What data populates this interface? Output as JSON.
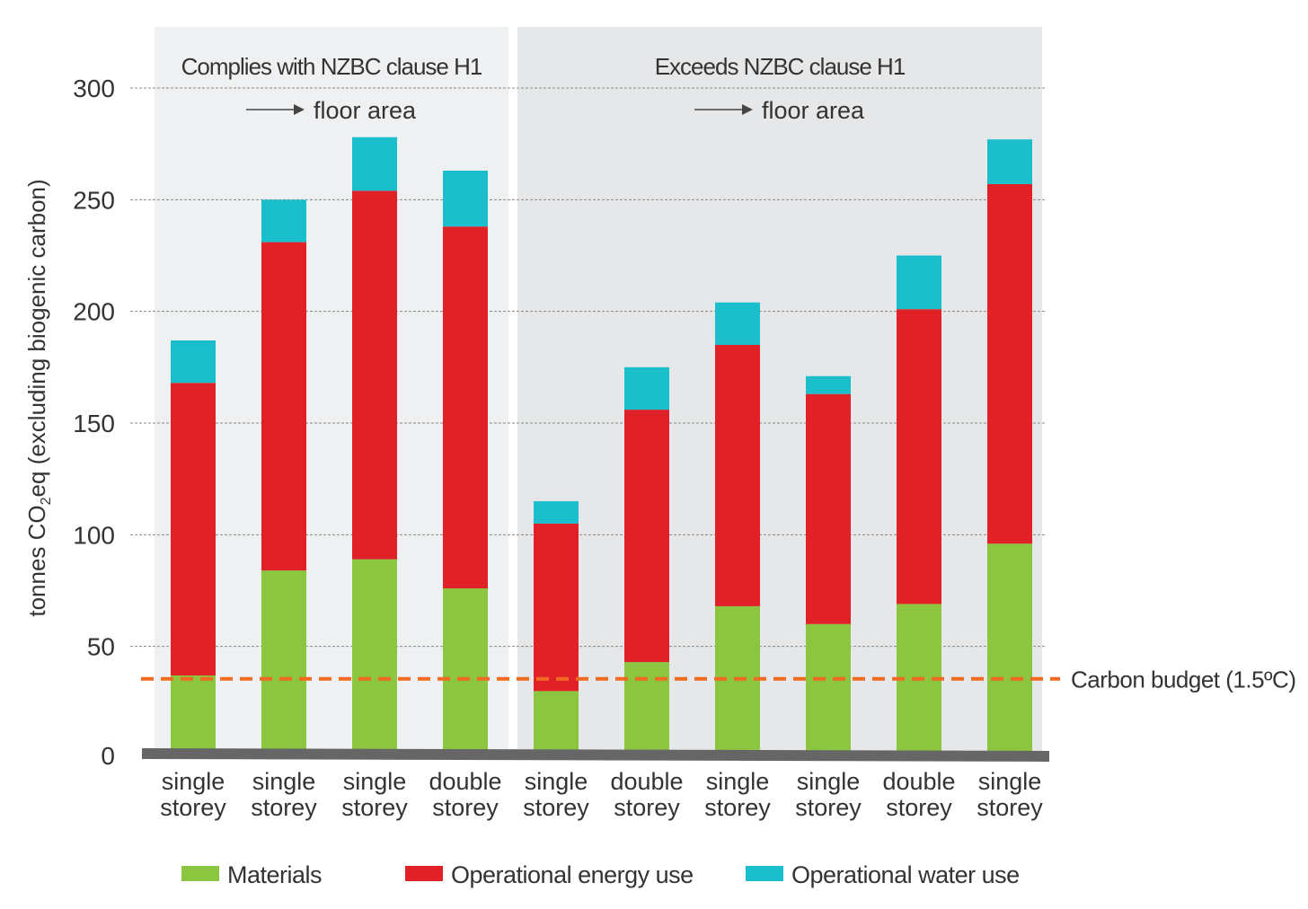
{
  "chart_data": {
    "type": "bar",
    "stacked": true,
    "ylabel": "tonnes CO2eq (excluding biogenic carbon)",
    "ylabel_parts": {
      "pre": "tonnes CO",
      "sub": "2",
      "post": "eq (excluding biogenic carbon)"
    },
    "ylim": [
      0,
      300
    ],
    "yticks": [
      0,
      50,
      100,
      150,
      200,
      250,
      300
    ],
    "grid": true,
    "groups": [
      {
        "title": "Complies with NZBC clause H1",
        "note": "floor area",
        "bar_count": 4
      },
      {
        "title": "Exceeds NZBC clause H1",
        "note": "floor area",
        "bar_count": 6
      }
    ],
    "categories": [
      [
        "single",
        "storey"
      ],
      [
        "single",
        "storey"
      ],
      [
        "single",
        "storey"
      ],
      [
        "double",
        "storey"
      ],
      [
        "single",
        "storey"
      ],
      [
        "double",
        "storey"
      ],
      [
        "single",
        "storey"
      ],
      [
        "single",
        "storey"
      ],
      [
        "double",
        "storey"
      ],
      [
        "single",
        "storey"
      ]
    ],
    "series": [
      {
        "name": "Materials",
        "color": "#8cc540",
        "values": [
          37,
          84,
          89,
          76,
          30,
          43,
          68,
          60,
          69,
          96
        ]
      },
      {
        "name": "Operational energy use",
        "color": "#e02127",
        "values": [
          131,
          147,
          165,
          162,
          75,
          113,
          117,
          103,
          132,
          161
        ]
      },
      {
        "name": "Operational water use",
        "color": "#1bbecb",
        "values": [
          19,
          19,
          24,
          25,
          10,
          19,
          19,
          8,
          24,
          20
        ]
      }
    ],
    "reference_line": {
      "label": "Carbon budget (1.5ºC)",
      "value": 35.5,
      "color": "#f26a21"
    },
    "legend_position": "bottom"
  }
}
